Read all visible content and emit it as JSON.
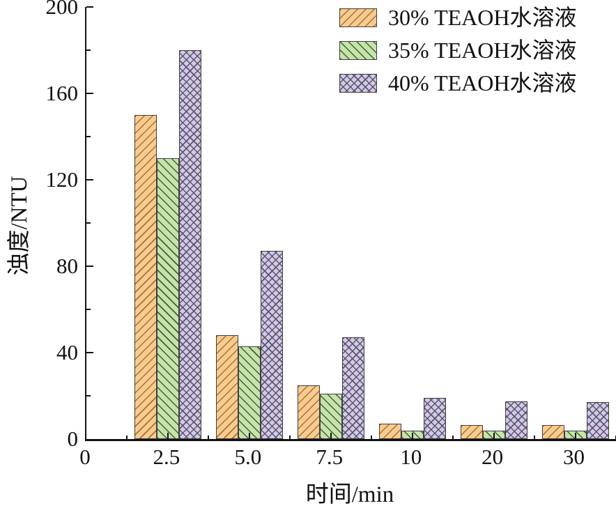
{
  "chart_data": {
    "type": "bar",
    "title": "",
    "xlabel": "时间/min",
    "ylabel": "浊度/NTU",
    "categories": [
      "2.5",
      "5.0",
      "7.5",
      "10",
      "20",
      "30"
    ],
    "origin_label": "0",
    "series": [
      {
        "name": "30% TEAOH水溶液",
        "values": [
          150,
          48,
          25,
          7,
          6.5,
          6.5
        ],
        "fill": "#f8cc90",
        "hatch_color": "#ab6e33",
        "hatch_style": "forward-diagonal"
      },
      {
        "name": "35% TEAOH水溶液",
        "values": [
          130,
          43,
          21,
          4,
          4,
          4
        ],
        "fill": "#c6e3ac",
        "hatch_color": "#3f5f2e",
        "hatch_style": "back-diagonal"
      },
      {
        "name": "40% TEAOH水溶液",
        "values": [
          180,
          87,
          47,
          19,
          17.5,
          17
        ],
        "fill": "#d1cae2",
        "hatch_color": "#5a5172",
        "hatch_style": "cross-diagonal"
      }
    ],
    "ylim": [
      0,
      200
    ],
    "y_major_ticks": [
      0,
      40,
      80,
      120,
      160,
      200
    ],
    "y_minor_step": 20,
    "grid": false,
    "legend_position": "top-right",
    "colors": {
      "axis": "#111111",
      "text": "#111111",
      "bar_border": "#3f3f3f",
      "background": "#ffffff"
    }
  }
}
